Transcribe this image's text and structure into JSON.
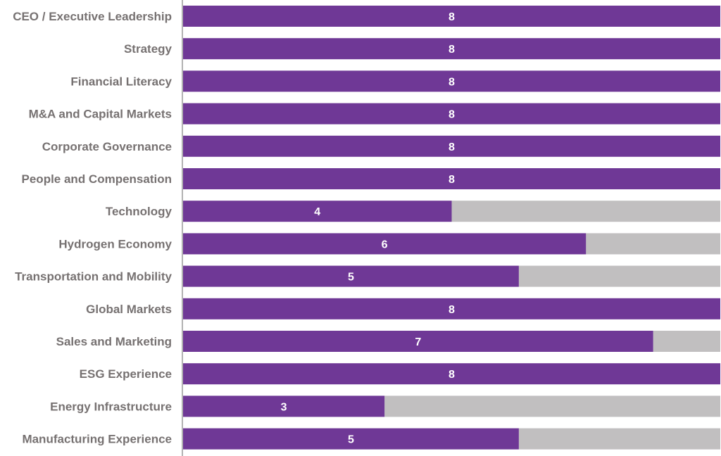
{
  "chart_data": {
    "type": "bar",
    "orientation": "horizontal",
    "stacked": true,
    "categories": [
      "CEO / Executive Leadership",
      "Strategy",
      "Financial Literacy",
      "M&A and Capital Markets",
      "Corporate Governance",
      "People and Compensation",
      "Technology",
      "Hydrogen Economy",
      "Transportation and Mobility",
      "Global Markets",
      "Sales and Marketing",
      "ESG Experience",
      "Energy Infrastructure",
      "Manufacturing Experience"
    ],
    "values": [
      8,
      8,
      8,
      8,
      8,
      8,
      4,
      6,
      5,
      8,
      7,
      8,
      3,
      5
    ],
    "value_labels": [
      "8",
      "8",
      "8",
      "8",
      "8",
      "8",
      "4",
      "6",
      "5",
      "8",
      "7",
      "8",
      "3",
      "5"
    ],
    "total": 8,
    "xlim": [
      0,
      8
    ],
    "title": "",
    "xlabel": "",
    "ylabel": "",
    "grid": false,
    "legend": "none",
    "colors": {
      "filled": "#6f3896",
      "remainder": "#c1bfc0",
      "category_text": "#767171",
      "value_text": "#ffffff",
      "axis": "#9a9a9a"
    }
  }
}
